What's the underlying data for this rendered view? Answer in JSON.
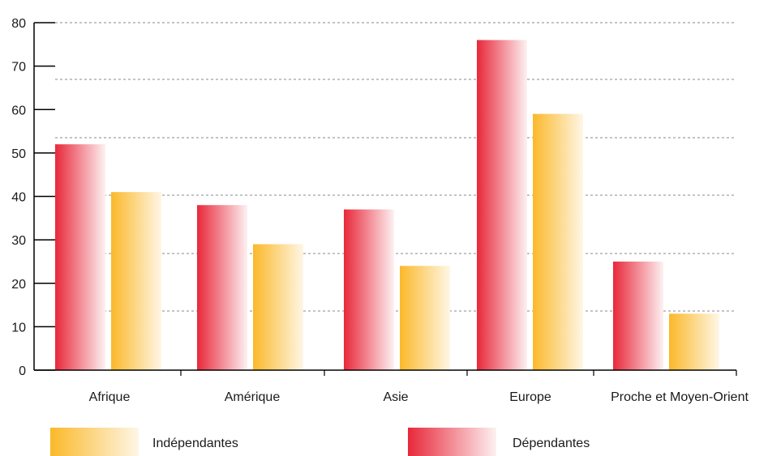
{
  "chart_data": {
    "type": "bar",
    "categories": [
      "Afrique",
      "Amérique",
      "Asie",
      "Europe",
      "Proche et Moyen-Orient"
    ],
    "series": [
      {
        "name": "Dépendantes",
        "values": [
          52,
          38,
          37,
          76,
          25
        ],
        "color_start": "#e8283a",
        "color_end": "#fdf1f2"
      },
      {
        "name": "Indépendantes",
        "values": [
          41,
          29,
          24,
          59,
          13
        ],
        "color_start": "#fbb92a",
        "color_end": "#fef6e6"
      }
    ],
    "y_ticks": [
      0,
      10,
      20,
      30,
      40,
      50,
      60,
      70,
      80
    ],
    "ylim": [
      0,
      80
    ],
    "grid": true,
    "grid_style": "dashed",
    "legend_position": "bottom",
    "legend_order": [
      "Indépendantes",
      "Dépendantes"
    ],
    "title": "",
    "xlabel": "",
    "ylabel": ""
  }
}
